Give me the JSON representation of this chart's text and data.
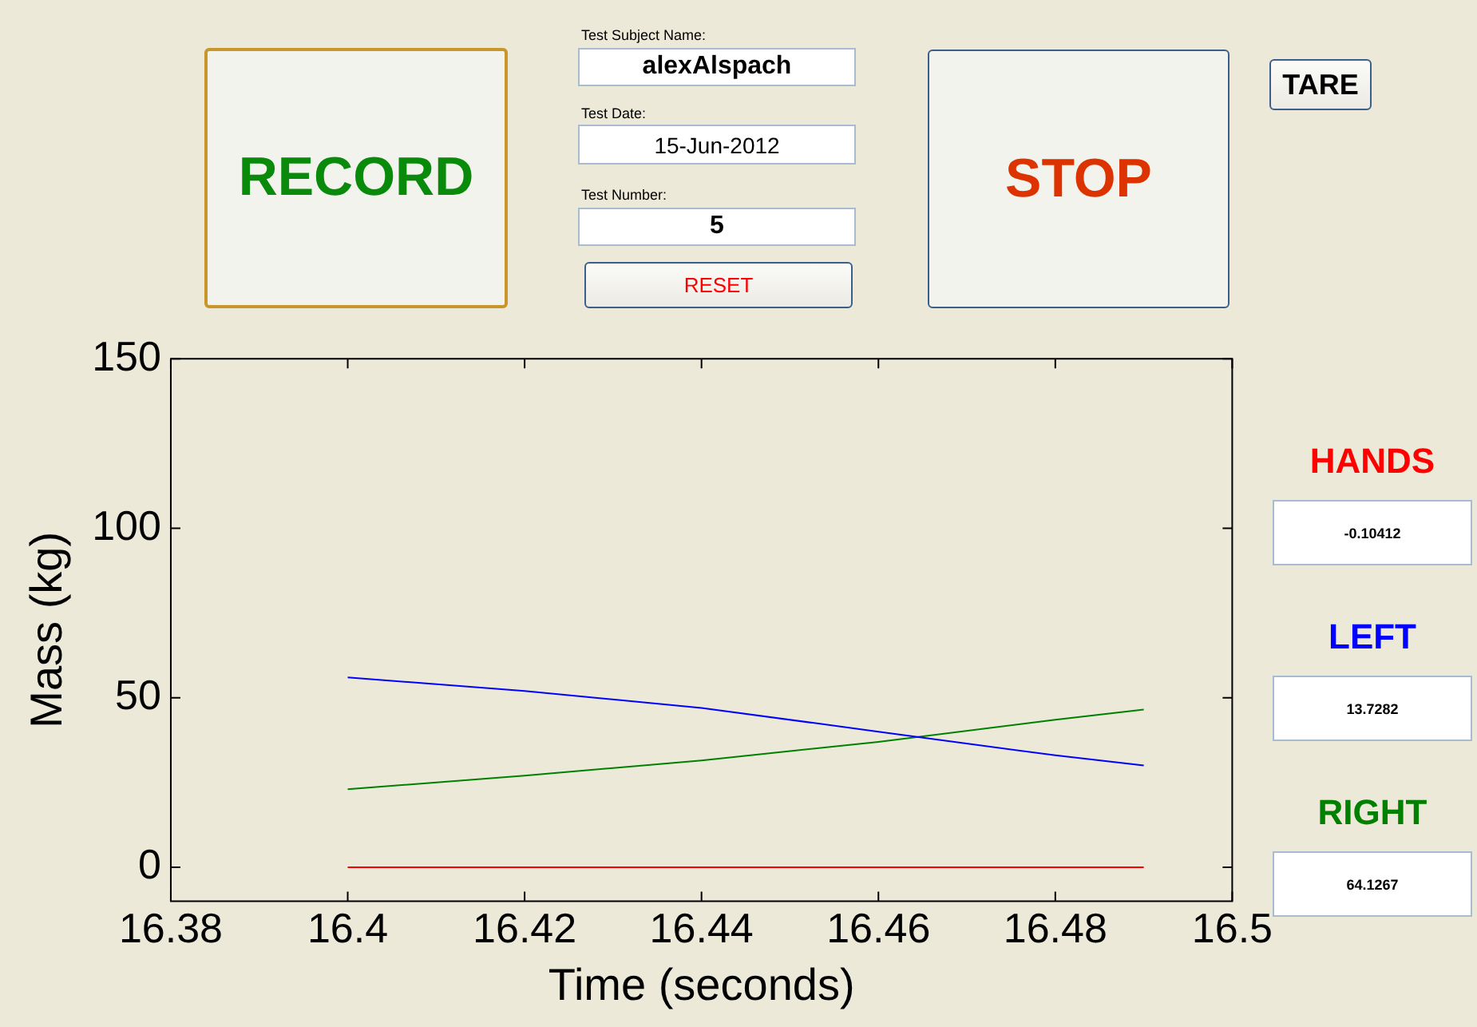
{
  "chart_data": {
    "type": "line",
    "xlabel": "Time (seconds)",
    "ylabel": "Mass (kg)",
    "xlim": [
      16.38,
      16.5
    ],
    "xticks": [
      16.38,
      16.4,
      16.42,
      16.44,
      16.46,
      16.48,
      16.5
    ],
    "ylim": [
      -10,
      150
    ],
    "yticks": [
      0,
      50,
      100,
      150
    ],
    "grid": false,
    "marker": "none",
    "line_style": "solid",
    "series": [
      {
        "name": "HANDS",
        "color": "#ff0000",
        "x": [
          16.4,
          16.42,
          16.44,
          16.46,
          16.48,
          16.49
        ],
        "values": [
          0,
          0,
          0,
          0,
          0,
          0
        ]
      },
      {
        "name": "LEFT",
        "color": "#0000ff",
        "x": [
          16.4,
          16.42,
          16.44,
          16.46,
          16.48,
          16.49
        ],
        "values": [
          56,
          52,
          47,
          40,
          33,
          30
        ]
      },
      {
        "name": "RIGHT",
        "color": "#008000",
        "x": [
          16.4,
          16.42,
          16.44,
          16.46,
          16.48,
          16.49
        ],
        "values": [
          23,
          27,
          31.5,
          37,
          43.5,
          46.5
        ]
      }
    ],
    "annotations": [
      "RECORD",
      "Test Subject Name:",
      "alexAlspach",
      "Test Date:",
      "15-Jun-2012",
      "Test Number:",
      "5",
      "RESET",
      "STOP",
      "TARE",
      "-0.10412",
      "13.7282",
      "64.1267"
    ]
  }
}
